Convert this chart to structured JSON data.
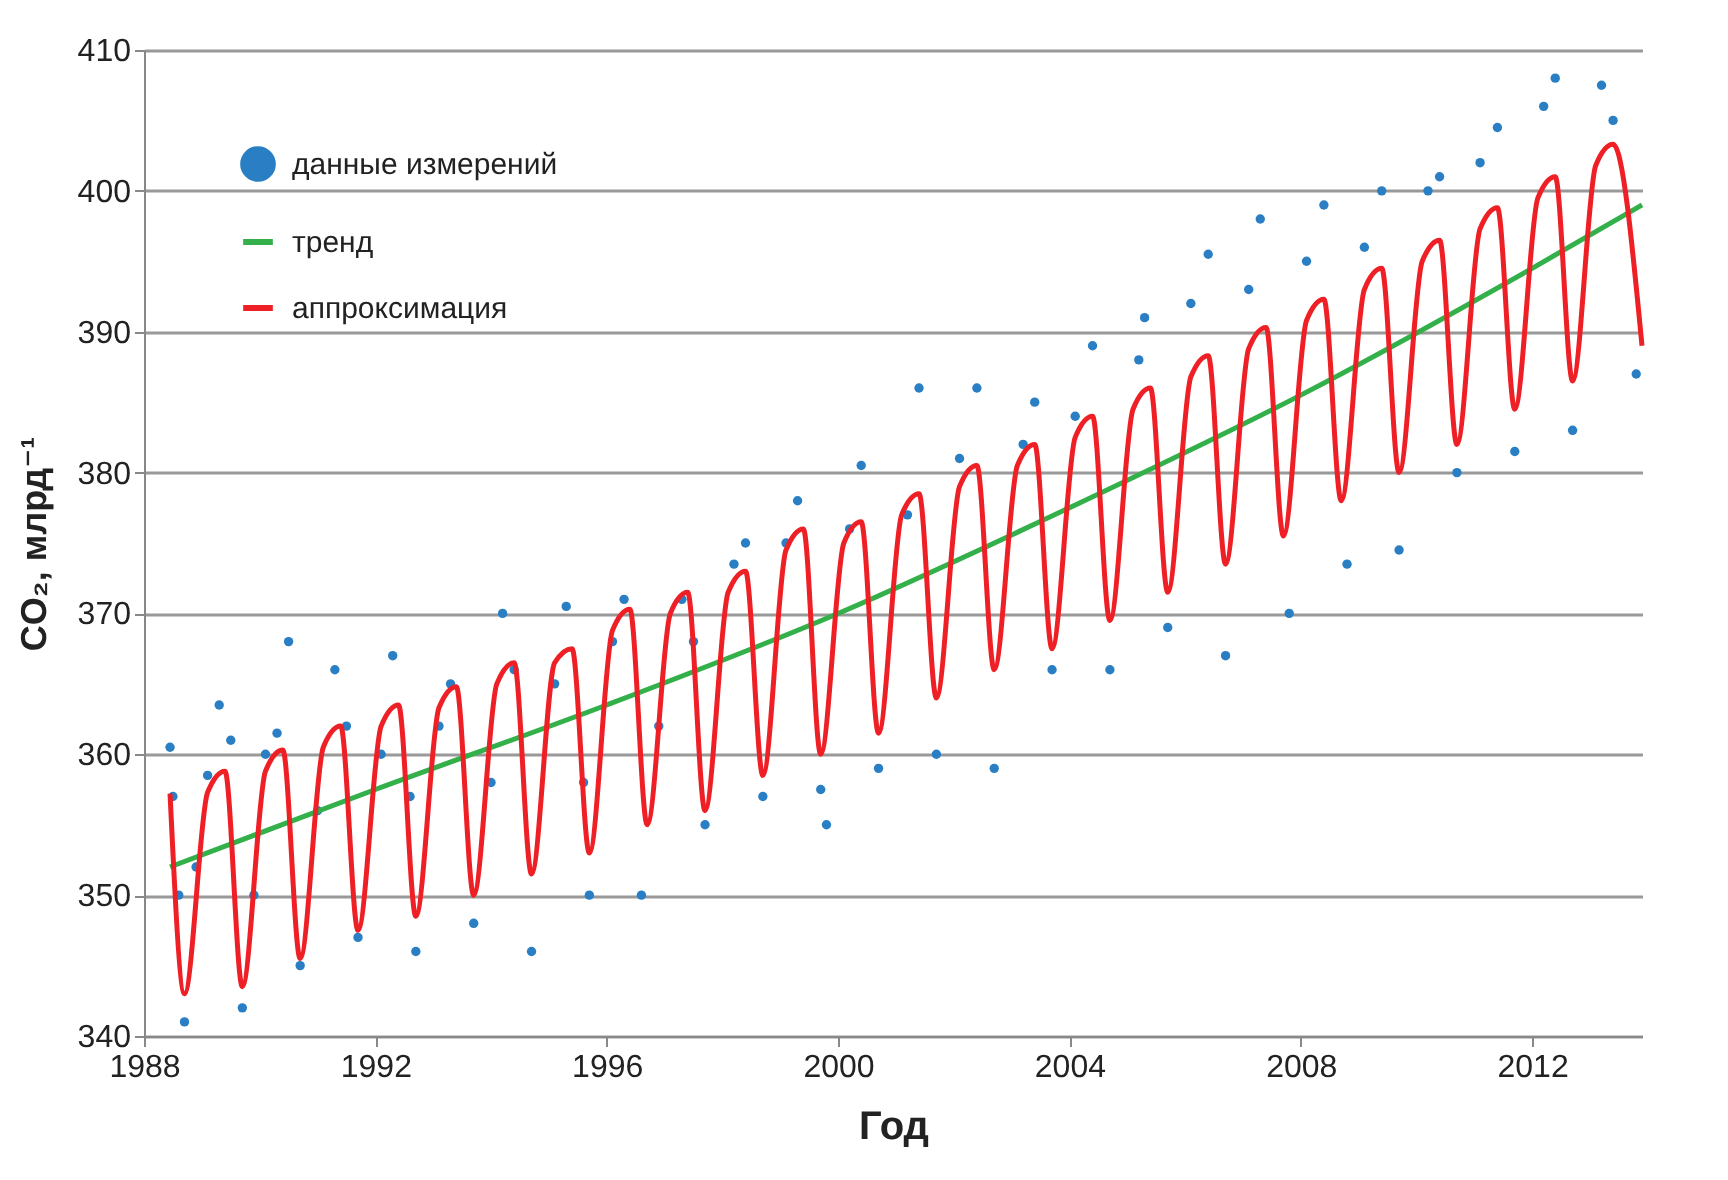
{
  "chart_data": {
    "type": "line",
    "xlabel": "Год",
    "ylabel": "CO₂, млрд⁻¹",
    "xlim": [
      1988,
      2013.9
    ],
    "ylim": [
      340,
      410
    ],
    "xticks": [
      1988,
      1992,
      1996,
      2000,
      2004,
      2008,
      2012
    ],
    "yticks": [
      340,
      350,
      360,
      370,
      380,
      390,
      400,
      410
    ],
    "grid": "y",
    "legend": "top left",
    "series": [
      {
        "name": "данные измерений",
        "type": "scatter",
        "marker": "circle",
        "color": "#2a7fc4",
        "x": [
          1988.45,
          1988.5,
          1988.6,
          1988.7,
          1988.9,
          1989.1,
          1989.3,
          1989.5,
          1989.7,
          1989.9,
          1990.1,
          1990.3,
          1990.5,
          1990.7,
          1991.0,
          1991.3,
          1991.5,
          1991.7,
          1992.1,
          1992.3,
          1992.6,
          1992.7,
          1993.1,
          1993.3,
          1993.7,
          1994.0,
          1994.2,
          1994.4,
          1994.7,
          1995.1,
          1995.3,
          1995.6,
          1995.7,
          1996.1,
          1996.3,
          1996.6,
          1996.9,
          1997.3,
          1997.5,
          1997.7,
          1998.2,
          1998.4,
          1998.7,
          1999.1,
          1999.3,
          1999.7,
          1999.8,
          2000.2,
          2000.4,
          2000.7,
          2001.2,
          2001.4,
          2001.7,
          2002.1,
          2002.4,
          2002.7,
          2003.2,
          2003.4,
          2003.7,
          2004.1,
          2004.4,
          2004.7,
          2005.2,
          2005.3,
          2005.7,
          2006.1,
          2006.4,
          2006.7,
          2007.1,
          2007.3,
          2007.8,
          2008.1,
          2008.4,
          2008.8,
          2009.1,
          2009.4,
          2009.7,
          2010.2,
          2010.4,
          2010.7,
          2011.1,
          2011.4,
          2011.7,
          2012.2,
          2012.4,
          2012.7,
          2013.2,
          2013.4,
          2013.8
        ],
        "values": [
          360.5,
          357,
          350,
          341,
          352,
          358.5,
          363.5,
          361,
          342,
          350,
          360,
          361.5,
          368,
          345,
          356,
          366,
          362,
          347,
          360,
          367,
          357,
          346,
          362,
          365,
          348,
          358,
          370,
          366,
          346,
          365,
          370.5,
          358,
          350,
          368,
          371,
          350,
          362,
          371,
          368,
          355,
          373.5,
          375,
          357,
          375,
          378,
          357.5,
          355,
          376,
          380.5,
          359,
          377,
          386,
          360,
          381,
          386,
          359,
          382,
          385,
          366,
          384,
          389,
          366,
          388,
          391,
          369,
          392,
          395.5,
          367,
          393,
          398,
          370,
          395,
          399,
          373.5,
          396,
          400,
          374.5,
          400,
          401,
          380,
          402,
          404.5,
          381.5,
          406,
          408,
          383,
          407.5,
          405,
          387
        ]
      },
      {
        "name": "тренд",
        "color": "#33b04a",
        "x": [
          1988.45,
          1992,
          1996,
          2000,
          2004,
          2008,
          2012,
          2013.9
        ],
        "values": [
          352,
          357.5,
          363.5,
          370,
          377.5,
          385.5,
          394.5,
          399
        ]
      },
      {
        "name": "аппроксимация",
        "color": "#ee2026",
        "x": [
          1988.45,
          1988.7,
          1989.1,
          1989.4,
          1989.7,
          1990.1,
          1990.4,
          1990.7,
          1991.1,
          1991.4,
          1991.7,
          1992.1,
          1992.4,
          1992.7,
          1993.1,
          1993.4,
          1993.7,
          1994.1,
          1994.4,
          1994.7,
          1995.1,
          1995.4,
          1995.7,
          1996.1,
          1996.4,
          1996.7,
          1997.1,
          1997.4,
          1997.7,
          1998.1,
          1998.4,
          1998.7,
          1999.1,
          1999.4,
          1999.7,
          2000.1,
          2000.4,
          2000.7,
          2001.1,
          2001.4,
          2001.7,
          2002.1,
          2002.4,
          2002.7,
          2003.1,
          2003.4,
          2003.7,
          2004.1,
          2004.4,
          2004.7,
          2005.1,
          2005.4,
          2005.7,
          2006.1,
          2006.4,
          2006.7,
          2007.1,
          2007.4,
          2007.7,
          2008.1,
          2008.4,
          2008.7,
          2009.1,
          2009.4,
          2009.7,
          2010.1,
          2010.4,
          2010.7,
          2011.1,
          2011.4,
          2011.7,
          2012.1,
          2012.4,
          2012.7,
          2013.1,
          2013.4,
          2013.9
        ],
        "values": [
          357.2,
          343,
          357.3,
          358.8,
          343.5,
          358.8,
          360.3,
          345.5,
          360.5,
          362,
          347.5,
          362,
          363.5,
          348.5,
          363.3,
          364.8,
          350,
          365,
          366.5,
          351.5,
          366.5,
          367.5,
          353,
          368.8,
          370.3,
          355,
          370,
          371.5,
          356,
          371.5,
          373,
          358.5,
          374.5,
          376,
          360,
          375,
          376.5,
          361.5,
          377,
          378.5,
          364,
          379,
          380.5,
          366,
          380.5,
          382,
          367.5,
          382.5,
          384,
          369.5,
          384.5,
          386,
          371.5,
          386.8,
          388.3,
          373.5,
          388.8,
          390.3,
          375.5,
          390.8,
          392.3,
          378,
          393,
          394.5,
          380,
          395,
          396.5,
          382,
          397.3,
          398.8,
          384.5,
          399.5,
          401,
          386.5,
          401.8,
          403.3,
          389
        ]
      }
    ]
  }
}
